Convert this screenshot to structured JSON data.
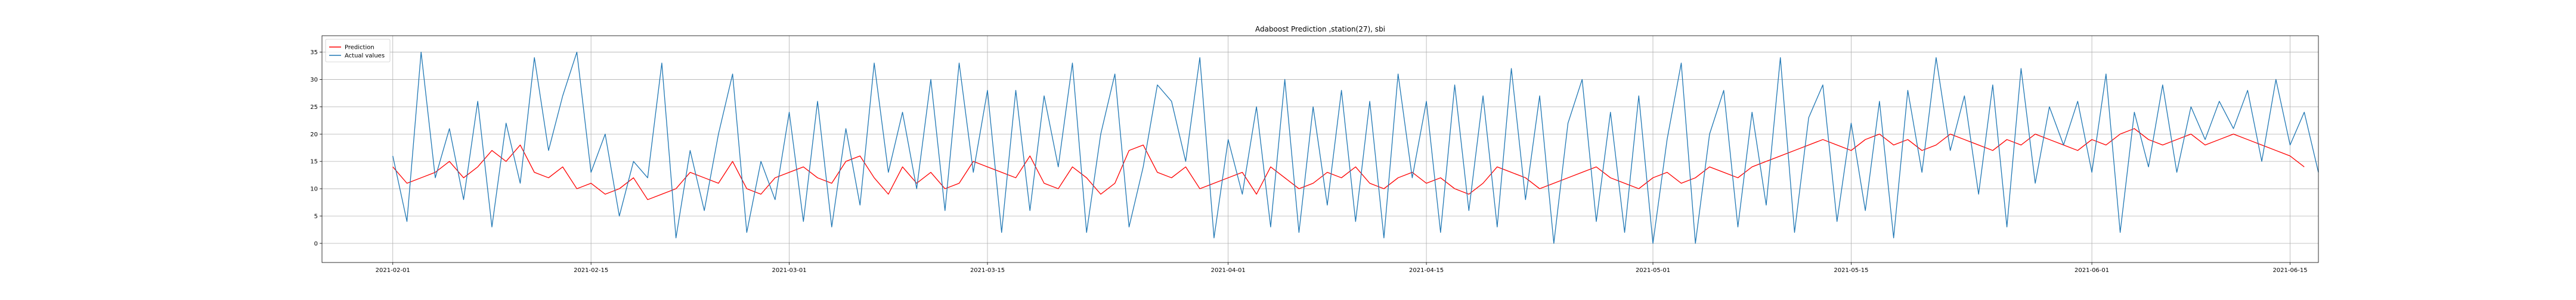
{
  "chart_data": {
    "type": "line",
    "title": "Adaboost Prediction ,station(27), sbi",
    "xlabel": "",
    "ylabel": "",
    "xlim": [
      "2021-01-27",
      "2021-06-17"
    ],
    "ylim": [
      -3.5,
      38
    ],
    "grid": true,
    "legend_position": "top-left",
    "x_ticks": [
      "2021-02-01",
      "2021-02-15",
      "2021-03-01",
      "2021-03-15",
      "2021-04-01",
      "2021-04-15",
      "2021-05-01",
      "2021-05-15",
      "2021-06-01",
      "2021-06-15"
    ],
    "y_ticks": [
      0,
      5,
      10,
      15,
      20,
      25,
      30,
      35
    ],
    "x_range_of_data": [
      "2021-02-01",
      "2021-06-10"
    ],
    "series": [
      {
        "name": "Prediction",
        "color": "#ff0000",
        "sample_interval_hours": 24,
        "values": [
          14,
          11,
          12,
          13,
          15,
          12,
          14,
          17,
          15,
          18,
          13,
          12,
          14,
          10,
          11,
          9,
          10,
          12,
          8,
          9,
          10,
          13,
          12,
          11,
          15,
          10,
          9,
          12,
          13,
          14,
          12,
          11,
          15,
          16,
          12,
          9,
          14,
          11,
          13,
          10,
          11,
          15,
          14,
          13,
          12,
          16,
          11,
          10,
          14,
          12,
          9,
          11,
          17,
          18,
          13,
          12,
          14,
          10,
          11,
          12,
          13,
          9,
          14,
          12,
          10,
          11,
          13,
          12,
          14,
          11,
          10,
          12,
          13,
          11,
          12,
          10,
          9,
          11,
          14,
          13,
          12,
          10,
          11,
          12,
          13,
          14,
          12,
          11,
          10,
          12,
          13,
          11,
          12,
          14,
          13,
          12,
          14,
          15,
          16,
          17,
          18,
          19,
          18,
          17,
          19,
          20,
          18,
          19,
          17,
          18,
          20,
          19,
          18,
          17,
          19,
          18,
          20,
          19,
          18,
          17,
          19,
          18,
          20,
          21,
          19,
          18,
          19,
          20,
          18,
          19,
          20,
          19,
          18,
          17,
          16,
          14
        ]
      },
      {
        "name": "Actual values",
        "color": "#1f77b4",
        "sample_interval_hours": 24,
        "values": [
          16,
          4,
          35,
          12,
          21,
          8,
          26,
          3,
          22,
          11,
          34,
          17,
          27,
          35,
          13,
          20,
          5,
          15,
          12,
          33,
          1,
          17,
          6,
          20,
          31,
          2,
          15,
          8,
          24,
          4,
          26,
          3,
          21,
          7,
          33,
          13,
          24,
          10,
          30,
          6,
          33,
          13,
          28,
          2,
          28,
          6,
          27,
          14,
          33,
          2,
          20,
          31,
          3,
          14,
          29,
          26,
          15,
          34,
          1,
          19,
          9,
          25,
          3,
          30,
          2,
          25,
          7,
          28,
          4,
          26,
          1,
          31,
          12,
          26,
          2,
          29,
          6,
          27,
          3,
          32,
          8,
          27,
          0,
          22,
          30,
          4,
          24,
          2,
          27,
          0,
          19,
          33,
          0,
          20,
          28,
          3,
          24,
          7,
          34,
          2,
          23,
          29,
          4,
          22,
          6,
          26,
          1,
          28,
          13,
          34,
          17,
          27,
          9,
          29,
          3,
          32,
          11,
          25,
          18,
          26,
          13,
          31,
          2,
          24,
          14,
          29,
          13,
          25,
          19,
          26,
          21,
          28,
          15,
          30,
          18,
          24,
          13
        ]
      }
    ]
  }
}
